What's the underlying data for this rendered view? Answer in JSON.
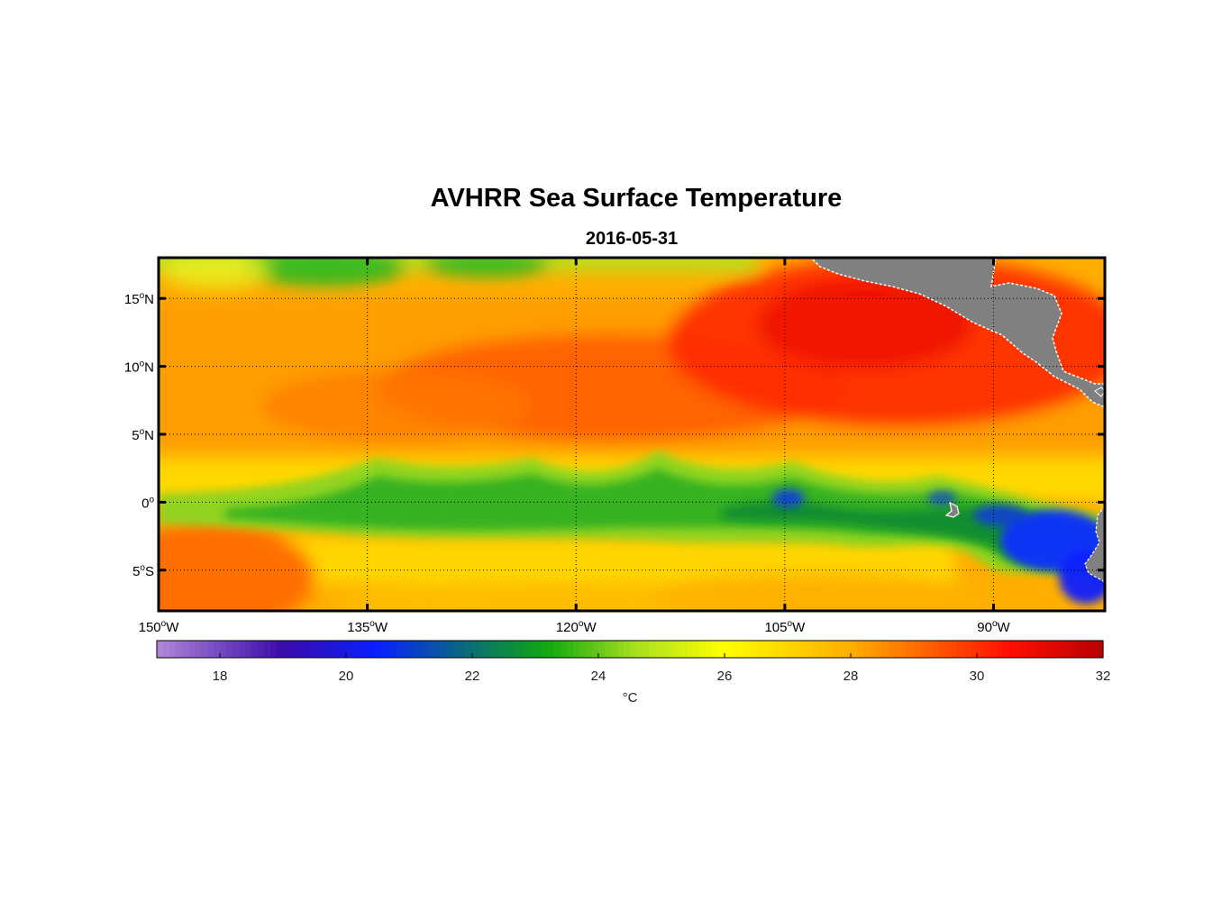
{
  "title": "AVHRR Sea Surface Temperature",
  "subtitle": "2016-05-31",
  "map": {
    "lon_range": [
      -150,
      -82
    ],
    "lat_range": [
      -8,
      18
    ],
    "x_ticks": [
      {
        "value": -150,
        "deg": "150",
        "dir": "W"
      },
      {
        "value": -135,
        "deg": "135",
        "dir": "W"
      },
      {
        "value": -120,
        "deg": "120",
        "dir": "W"
      },
      {
        "value": -105,
        "deg": "105",
        "dir": "W"
      },
      {
        "value": -90,
        "deg": "90",
        "dir": "W"
      }
    ],
    "y_ticks": [
      {
        "value": 15,
        "deg": "15",
        "dir": "N"
      },
      {
        "value": 10,
        "deg": "10",
        "dir": "N"
      },
      {
        "value": 5,
        "deg": "5",
        "dir": "N"
      },
      {
        "value": 0,
        "deg": "0",
        "dir": ""
      },
      {
        "value": -5,
        "deg": "5",
        "dir": "S"
      }
    ],
    "grid": "dotted",
    "land_color": "#808080"
  },
  "colorbar": {
    "range": [
      17,
      32
    ],
    "ticks": [
      18,
      20,
      22,
      24,
      26,
      28,
      30,
      32
    ],
    "unit_label": "°C",
    "stops": [
      {
        "t": 17,
        "color": "#b088d8"
      },
      {
        "t": 19,
        "color": "#3a0aa8"
      },
      {
        "t": 20.5,
        "color": "#0820ff"
      },
      {
        "t": 22,
        "color": "#0a7070"
      },
      {
        "t": 23.2,
        "color": "#10a810"
      },
      {
        "t": 24.6,
        "color": "#a8e020"
      },
      {
        "t": 26,
        "color": "#ffff00"
      },
      {
        "t": 28,
        "color": "#ffae00"
      },
      {
        "t": 30.5,
        "color": "#ff1000"
      },
      {
        "t": 32,
        "color": "#b80000"
      }
    ]
  },
  "chart_data": {
    "type": "heatmap",
    "title": "AVHRR Sea Surface Temperature",
    "subtitle": "2016-05-31",
    "xlabel": "",
    "ylabel": "",
    "colorbar_label": "°C",
    "xlim": [
      -150,
      -82
    ],
    "ylim": [
      -8,
      18
    ],
    "clim": [
      17,
      32
    ]
  }
}
